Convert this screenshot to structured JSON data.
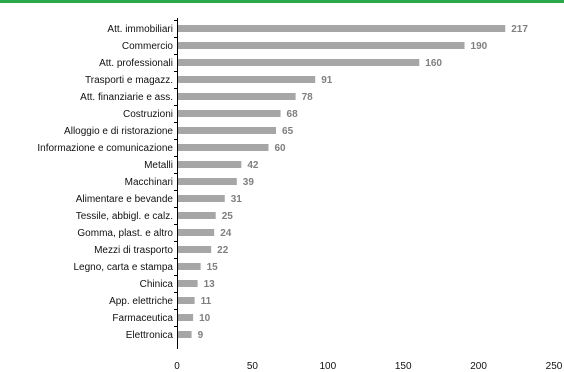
{
  "colors": {
    "accent_rule": "#2aa84a",
    "bar": "#a6a6a6",
    "value_label": "#7f7f7f",
    "axis": "#000000"
  },
  "chart_data": {
    "type": "bar",
    "orientation": "horizontal",
    "categories": [
      "Att. immobiliari",
      "Commercio",
      "Att. professionali",
      "Trasporti e magazz.",
      "Att. finanziarie e ass.",
      "Costruzioni",
      "Alloggio e di ristorazione",
      "Informazione e comunicazione",
      "Metalli",
      "Macchinari",
      "Alimentare e bevande",
      "Tessile, abbigl. e calz.",
      "Gomma, plast. e altro",
      "Mezzi di trasporto",
      "Legno, carta e stampa",
      "Chinica",
      "App. elettriche",
      "Farmaceutica",
      "Elettronica"
    ],
    "values": [
      217,
      190,
      160,
      91,
      78,
      68,
      65,
      60,
      42,
      39,
      31,
      25,
      24,
      22,
      15,
      13,
      11,
      10,
      9
    ],
    "xlim": [
      0,
      250
    ],
    "xticks": [
      "0",
      "50",
      "100",
      "150",
      "200",
      "250"
    ],
    "title": "",
    "xlabel": "",
    "ylabel": "",
    "grid": false,
    "legend": "none",
    "data_labels": true
  }
}
